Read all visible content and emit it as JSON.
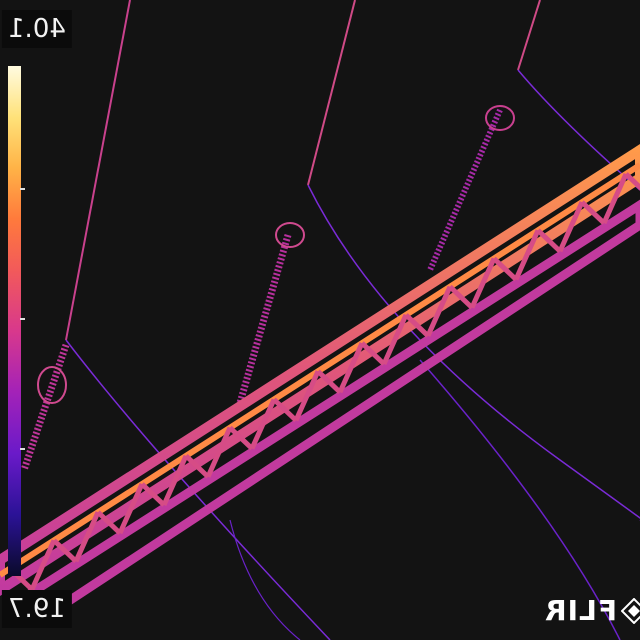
{
  "scale": {
    "max_label": "40.1",
    "min_label": "19.7"
  },
  "brand": {
    "text": "FLIR",
    "icon": "flir-diamond-logo"
  },
  "colors": {
    "background": "#131313",
    "hot": "#ff9a4a",
    "mid": "#d83a8f",
    "cool": "#8a2be2"
  }
}
